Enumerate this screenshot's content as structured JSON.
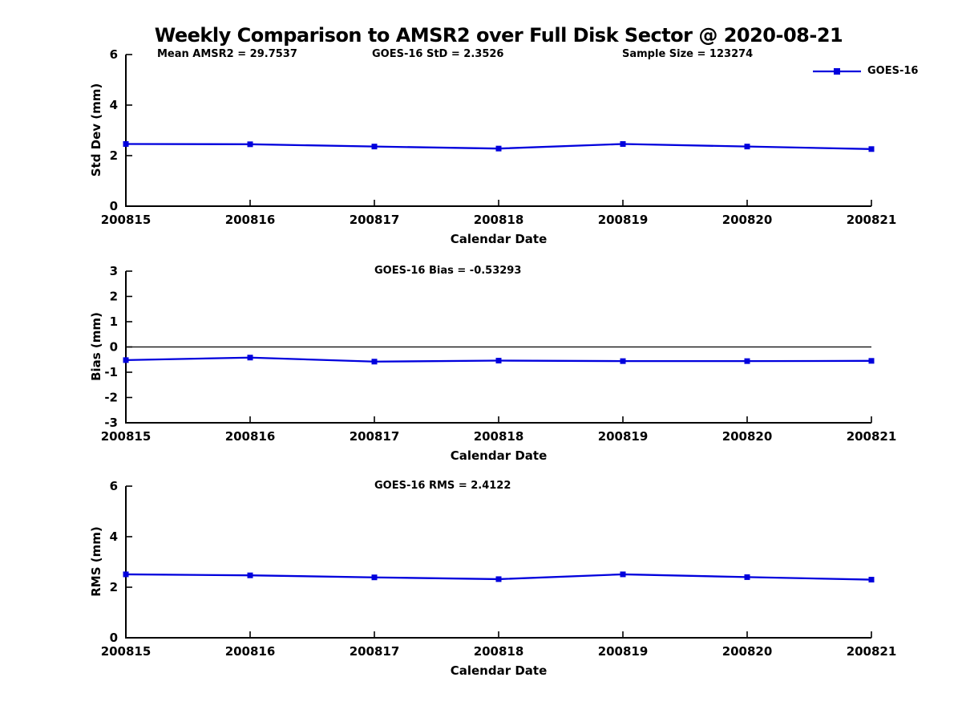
{
  "title": "Weekly Comparison to AMSR2 over Full Disk Sector @ 2020-08-21",
  "legend": {
    "label": "GOES-16",
    "marker": "square",
    "line_color": "#0000DD"
  },
  "colors": {
    "series": "#0000DD",
    "axis": "#000000",
    "text": "#000000",
    "background": "#FFFFFF"
  },
  "chart_data": [
    {
      "type": "line",
      "name": "std-dev",
      "ylabel": "Std Dev (mm)",
      "xlabel": "Calendar Date",
      "ylim": [
        0,
        6
      ],
      "yticks": [
        0,
        2,
        4,
        6
      ],
      "categories": [
        "200815",
        "200816",
        "200817",
        "200818",
        "200819",
        "200820",
        "200821"
      ],
      "series": [
        {
          "name": "GOES-16",
          "values": [
            2.46,
            2.45,
            2.36,
            2.28,
            2.46,
            2.36,
            2.26
          ]
        }
      ],
      "annotations": [
        "Mean AMSR2 = 29.7537",
        "GOES-16 StD = 2.3526",
        "Sample Size = 123274"
      ],
      "zero_line": false,
      "grid": false,
      "legend_position": "top-right-outside"
    },
    {
      "type": "line",
      "name": "bias",
      "ylabel": "Bias (mm)",
      "xlabel": "Calendar Date",
      "ylim": [
        -3,
        3
      ],
      "yticks": [
        -3,
        -2,
        -1,
        0,
        1,
        2,
        3
      ],
      "categories": [
        "200815",
        "200816",
        "200817",
        "200818",
        "200819",
        "200820",
        "200821"
      ],
      "series": [
        {
          "name": "GOES-16",
          "values": [
            -0.52,
            -0.42,
            -0.58,
            -0.54,
            -0.56,
            -0.56,
            -0.55
          ]
        }
      ],
      "annotations": [
        "GOES-16 Bias  = -0.53293"
      ],
      "zero_line": true,
      "grid": false
    },
    {
      "type": "line",
      "name": "rms",
      "ylabel": "RMS (mm)",
      "xlabel": "Calendar Date",
      "ylim": [
        0,
        6
      ],
      "yticks": [
        0,
        2,
        4,
        6
      ],
      "categories": [
        "200815",
        "200816",
        "200817",
        "200818",
        "200819",
        "200820",
        "200821"
      ],
      "series": [
        {
          "name": "GOES-16",
          "values": [
            2.51,
            2.47,
            2.39,
            2.32,
            2.51,
            2.4,
            2.3
          ]
        }
      ],
      "annotations": [
        "GOES-16 RMS = 2.4122"
      ],
      "zero_line": false,
      "grid": false
    }
  ]
}
